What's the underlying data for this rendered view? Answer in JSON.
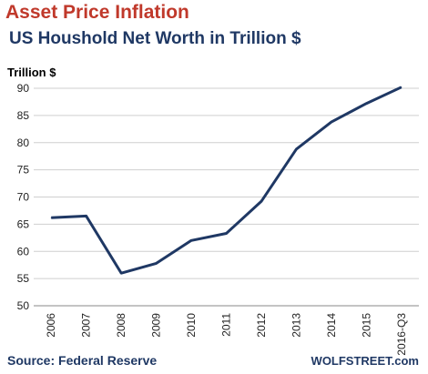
{
  "title": "Asset Price Inflation",
  "subtitle": "US Houshold Net Worth in Trillion $",
  "ylabel": "Trillion $",
  "source": "Source: Federal Reserve",
  "brand": "WOLFSTREET.com",
  "colors": {
    "title": "#c0392b",
    "subtitle": "#1f3864",
    "line": "#1f3864",
    "grid": "#cfcfcf"
  },
  "chart_data": {
    "type": "line",
    "title": "US Houshold Net Worth in Trillion $",
    "ylabel": "Trillion $",
    "xlabel": "",
    "categories": [
      "2006",
      "2007",
      "2008",
      "2009",
      "2010",
      "2011",
      "2012",
      "2013",
      "2014",
      "2015",
      "2016-Q3"
    ],
    "values": [
      66.2,
      66.5,
      56.0,
      57.8,
      62.0,
      63.3,
      69.2,
      78.8,
      83.8,
      87.2,
      90.2
    ],
    "ylim": [
      50,
      90
    ],
    "yticks": [
      50,
      55,
      60,
      65,
      70,
      75,
      80,
      85,
      90
    ],
    "grid": "horizontal",
    "legend": "none"
  }
}
